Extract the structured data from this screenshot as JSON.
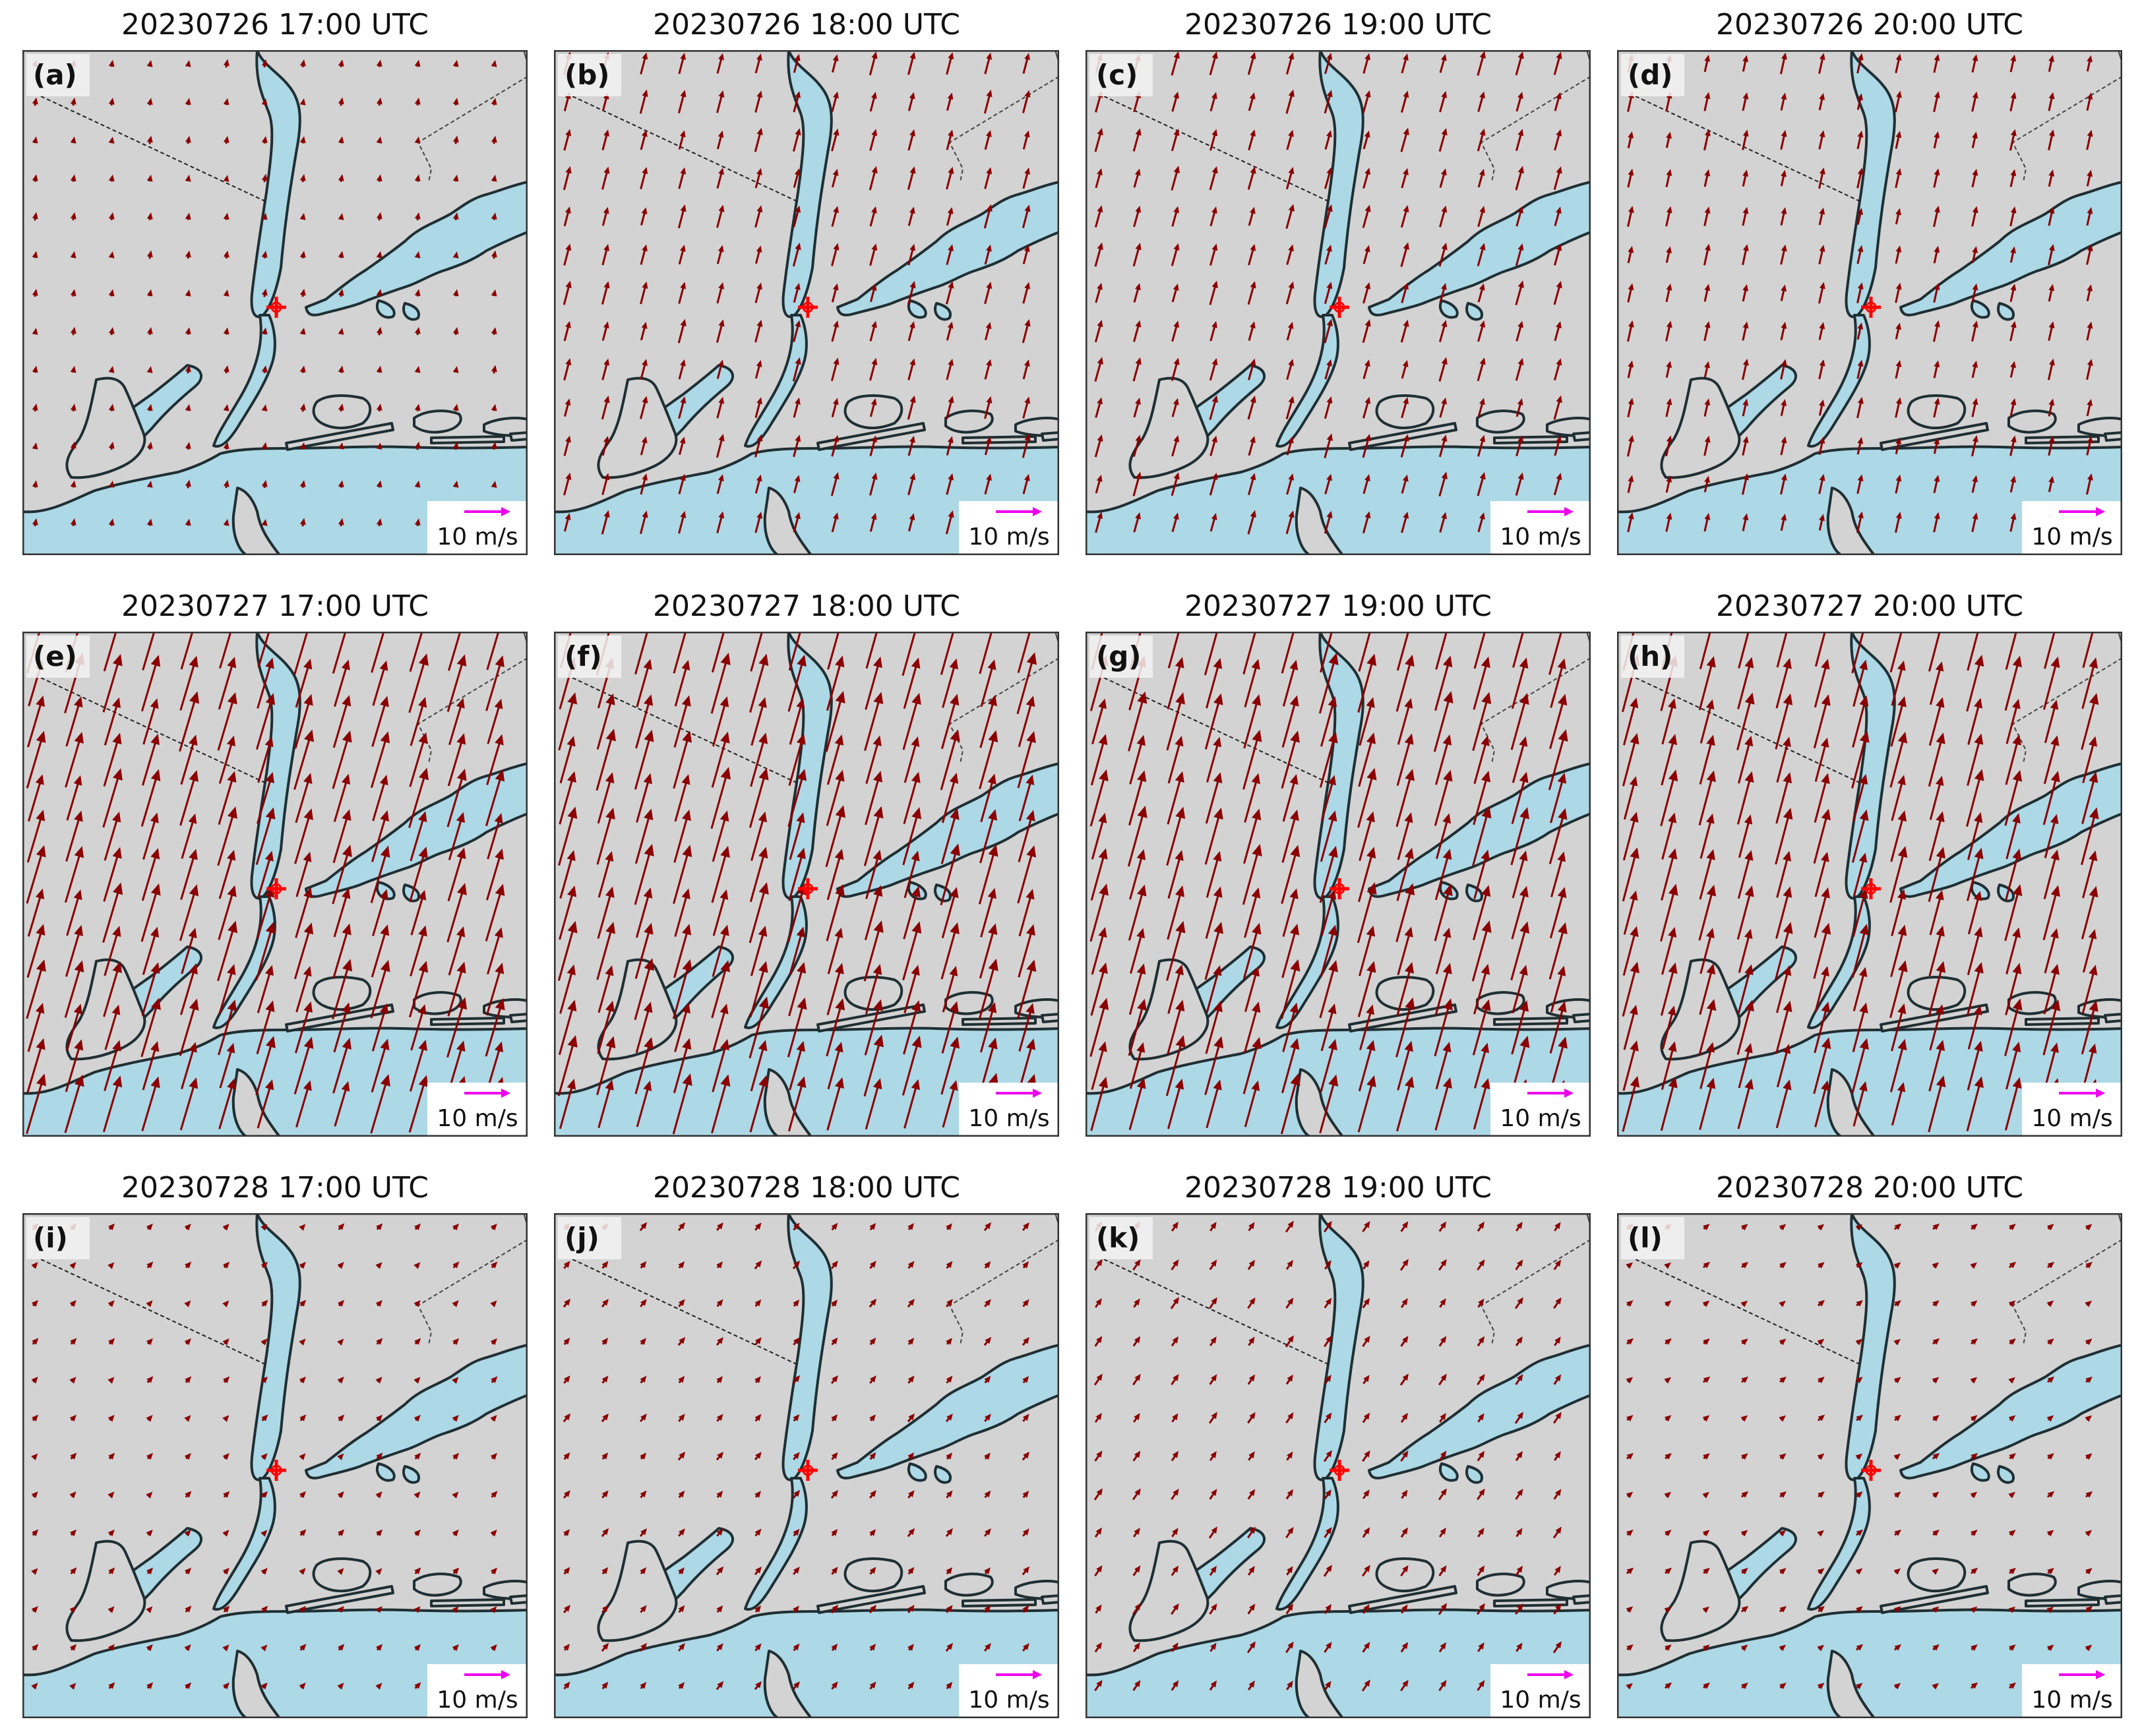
{
  "figure": {
    "scale_label": "10 m/s",
    "reference_speed_ms": 10,
    "colors": {
      "land": "#d3d3d3",
      "water": "#add8e6",
      "coastline": "#1f2f33",
      "wind_vector": "#8b0000",
      "site_marker": "#ff0000",
      "reference_vector": "#ee00ee",
      "border": "#333333"
    },
    "panels": [
      {
        "tag": "(a)",
        "title": "20230726 17:00 UTC",
        "wind": {
          "u": 0.3,
          "v": 1.6
        }
      },
      {
        "tag": "(b)",
        "title": "20230726 18:00 UTC",
        "wind": {
          "u": 1.2,
          "v": 4.6
        }
      },
      {
        "tag": "(c)",
        "title": "20230726 19:00 UTC",
        "wind": {
          "u": 1.3,
          "v": 4.7
        }
      },
      {
        "tag": "(d)",
        "title": "20230726 20:00 UTC",
        "wind": {
          "u": 0.9,
          "v": 4.1
        }
      },
      {
        "tag": "(e)",
        "title": "20230727 17:00 UTC",
        "wind": {
          "u": 3.4,
          "v": 11.5
        }
      },
      {
        "tag": "(f)",
        "title": "20230727 18:00 UTC",
        "wind": {
          "u": 3.3,
          "v": 11.8
        }
      },
      {
        "tag": "(g)",
        "title": "20230727 19:00 UTC",
        "wind": {
          "u": 3.2,
          "v": 11.6
        }
      },
      {
        "tag": "(h)",
        "title": "20230727 20:00 UTC",
        "wind": {
          "u": 2.9,
          "v": 11.0
        }
      },
      {
        "tag": "(i)",
        "title": "20230728 17:00 UTC",
        "wind": {
          "u": 1.1,
          "v": 1.2
        }
      },
      {
        "tag": "(j)",
        "title": "20230728 18:00 UTC",
        "wind": {
          "u": 1.3,
          "v": 1.6
        }
      },
      {
        "tag": "(k)",
        "title": "20230728 19:00 UTC",
        "wind": {
          "u": 1.5,
          "v": 2.2
        }
      },
      {
        "tag": "(l)",
        "title": "20230728 20:00 UTC",
        "wind": {
          "u": 1.3,
          "v": 1.1
        }
      }
    ]
  }
}
